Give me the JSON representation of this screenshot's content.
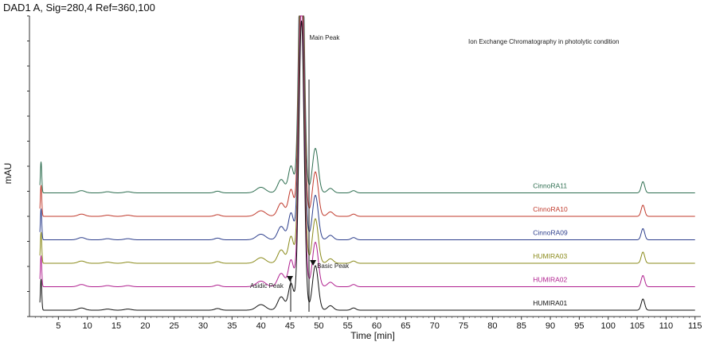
{
  "chart_data": {
    "type": "line",
    "header": "DAD1 A, Sig=280,4 Ref=360,100",
    "title": "Ion Exchange Chromatography in photolytic condition",
    "xlabel": "Time [min]",
    "ylabel": "mAU",
    "xlim": [
      0,
      116
    ],
    "xticks": [
      5,
      10,
      15,
      20,
      25,
      30,
      35,
      40,
      45,
      50,
      55,
      60,
      65,
      70,
      75,
      80,
      85,
      90,
      95,
      100,
      105,
      110,
      115
    ],
    "y_tick_labels_shown": false,
    "grid": false,
    "annotations": [
      {
        "text": "Main Peak",
        "x": 47
      },
      {
        "text": "Basic Peak",
        "x": 49
      },
      {
        "text": "Asidic Peak",
        "x": 45
      }
    ],
    "series": [
      {
        "name": "CinnoRA11",
        "color": "#2e6e50",
        "label_x": 87,
        "baseline_index": 5
      },
      {
        "name": "CinnoRA10",
        "color": "#c0392b",
        "label_x": 87,
        "baseline_index": 4
      },
      {
        "name": "CinnoRA09",
        "color": "#2c3e8c",
        "label_x": 87,
        "baseline_index": 3
      },
      {
        "name": "HUMIRA03",
        "color": "#8a8a1a",
        "label_x": 87,
        "baseline_index": 2
      },
      {
        "name": "HUMIRA02",
        "color": "#b0208f",
        "label_x": 87,
        "baseline_index": 1
      },
      {
        "name": "HUMIRA01",
        "color": "#111111",
        "label_x": 87,
        "baseline_index": 0
      }
    ],
    "peaks_min": [
      {
        "t": 2.0,
        "h": 28,
        "w": 0.12
      },
      {
        "t": 9.0,
        "h": 2,
        "w": 0.6
      },
      {
        "t": 13.5,
        "h": 1,
        "w": 0.6
      },
      {
        "t": 17.0,
        "h": 1,
        "w": 0.6
      },
      {
        "t": 32.5,
        "h": 1.5,
        "w": 0.5
      },
      {
        "t": 40.0,
        "h": 5,
        "w": 0.8
      },
      {
        "t": 43.5,
        "h": 12,
        "w": 0.6
      },
      {
        "t": 45.2,
        "h": 24,
        "w": 0.45
      },
      {
        "t": 47.0,
        "h": 260,
        "w": 0.45
      },
      {
        "t": 49.4,
        "h": 40,
        "w": 0.5
      },
      {
        "t": 52.0,
        "h": 4,
        "w": 0.5
      },
      {
        "t": 56.0,
        "h": 2,
        "w": 0.4
      },
      {
        "t": 106.0,
        "h": 10,
        "w": 0.3
      }
    ]
  }
}
